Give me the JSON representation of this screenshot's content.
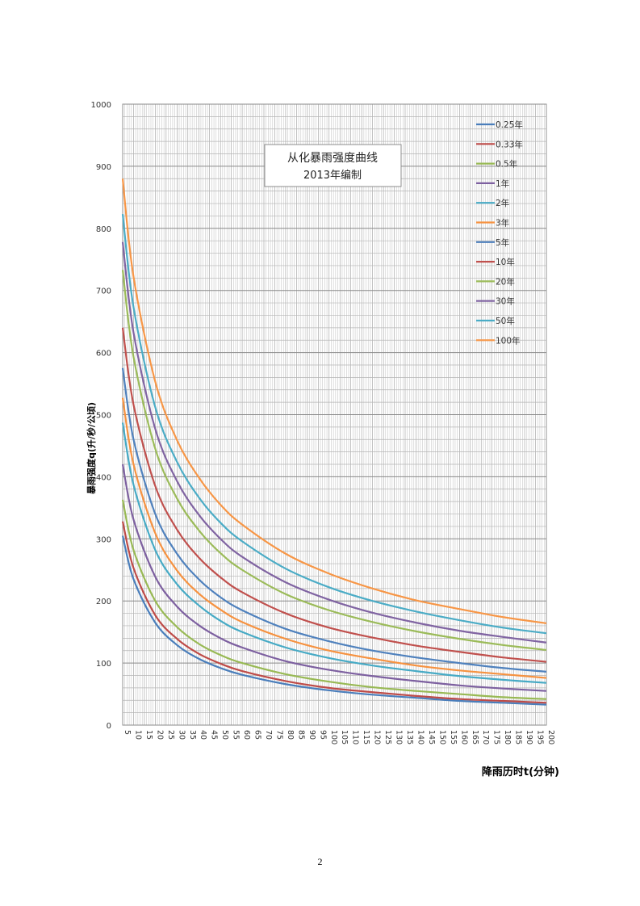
{
  "page_number": "2",
  "chart_data": {
    "type": "line",
    "title": "从化暴雨强度曲线",
    "subtitle": "2013年编制",
    "xlabel": "降雨历时t(分钟)",
    "ylabel": "暴雨强度q(升/秒/公顷)",
    "xlim": [
      5,
      200
    ],
    "ylim": [
      0,
      1000
    ],
    "x_ticks": [
      5,
      10,
      15,
      20,
      25,
      30,
      35,
      40,
      45,
      50,
      55,
      60,
      65,
      70,
      75,
      80,
      85,
      90,
      95,
      100,
      105,
      110,
      115,
      120,
      125,
      130,
      135,
      140,
      145,
      150,
      155,
      160,
      165,
      170,
      175,
      180,
      185,
      190,
      195,
      200
    ],
    "y_ticks": [
      0,
      100,
      200,
      300,
      400,
      500,
      600,
      700,
      800,
      900,
      1000
    ],
    "grid": true,
    "legend_position": "top-right",
    "x": [
      5,
      10,
      20,
      30,
      40,
      50,
      60,
      80,
      100,
      120,
      140,
      160,
      180,
      200
    ],
    "series": [
      {
        "name": "0.25年",
        "color": "#4a7ebb",
        "values": [
          305,
          235,
          165,
          129,
          107,
          92,
          81,
          66,
          56,
          49,
          44,
          39,
          36,
          33
        ]
      },
      {
        "name": "0.33年",
        "color": "#be4b48",
        "values": [
          328,
          253,
          177,
          139,
          115,
          99,
          87,
          71,
          60,
          53,
          47,
          42,
          39,
          36
        ]
      },
      {
        "name": "0.5年",
        "color": "#98b954",
        "values": [
          363,
          282,
          200,
          158,
          131,
          113,
          100,
          82,
          70,
          61,
          55,
          50,
          45,
          42
        ]
      },
      {
        "name": "1年",
        "color": "#7d60a0",
        "values": [
          420,
          331,
          239,
          191,
          161,
          140,
          125,
          103,
          89,
          79,
          71,
          64,
          59,
          55
        ]
      },
      {
        "name": "2年",
        "color": "#46aac5",
        "values": [
          487,
          387,
          282,
          227,
          193,
          168,
          150,
          125,
          108,
          96,
          87,
          79,
          73,
          68
        ]
      },
      {
        "name": "3年",
        "color": "#f69240",
        "values": [
          527,
          420,
          309,
          249,
          212,
          186,
          166,
          139,
          120,
          107,
          96,
          88,
          82,
          76
        ]
      },
      {
        "name": "5年",
        "color": "#4f81bd",
        "values": [
          575,
          460,
          340,
          276,
          235,
          206,
          185,
          155,
          135,
          120,
          109,
          100,
          92,
          86
        ]
      },
      {
        "name": "10年",
        "color": "#c0504d",
        "values": [
          640,
          516,
          385,
          315,
          270,
          238,
          214,
          180,
          157,
          141,
          128,
          118,
          109,
          102
        ]
      },
      {
        "name": "20年",
        "color": "#9bbb59",
        "values": [
          733,
          593,
          445,
          365,
          314,
          277,
          250,
          211,
          185,
          166,
          151,
          139,
          129,
          121
        ]
      },
      {
        "name": "30年",
        "color": "#8064a2",
        "values": [
          778,
          632,
          477,
          393,
          339,
          300,
          271,
          230,
          202,
          181,
          165,
          152,
          142,
          133
        ]
      },
      {
        "name": "50年",
        "color": "#4bacc6",
        "values": [
          823,
          673,
          512,
          424,
          367,
          326,
          296,
          252,
          222,
          200,
          183,
          169,
          157,
          148
        ]
      },
      {
        "name": "100年",
        "color": "#f79646",
        "values": [
          880,
          722,
          553,
          459,
          399,
          355,
          323,
          276,
          244,
          220,
          201,
          187,
          174,
          164
        ]
      }
    ]
  }
}
